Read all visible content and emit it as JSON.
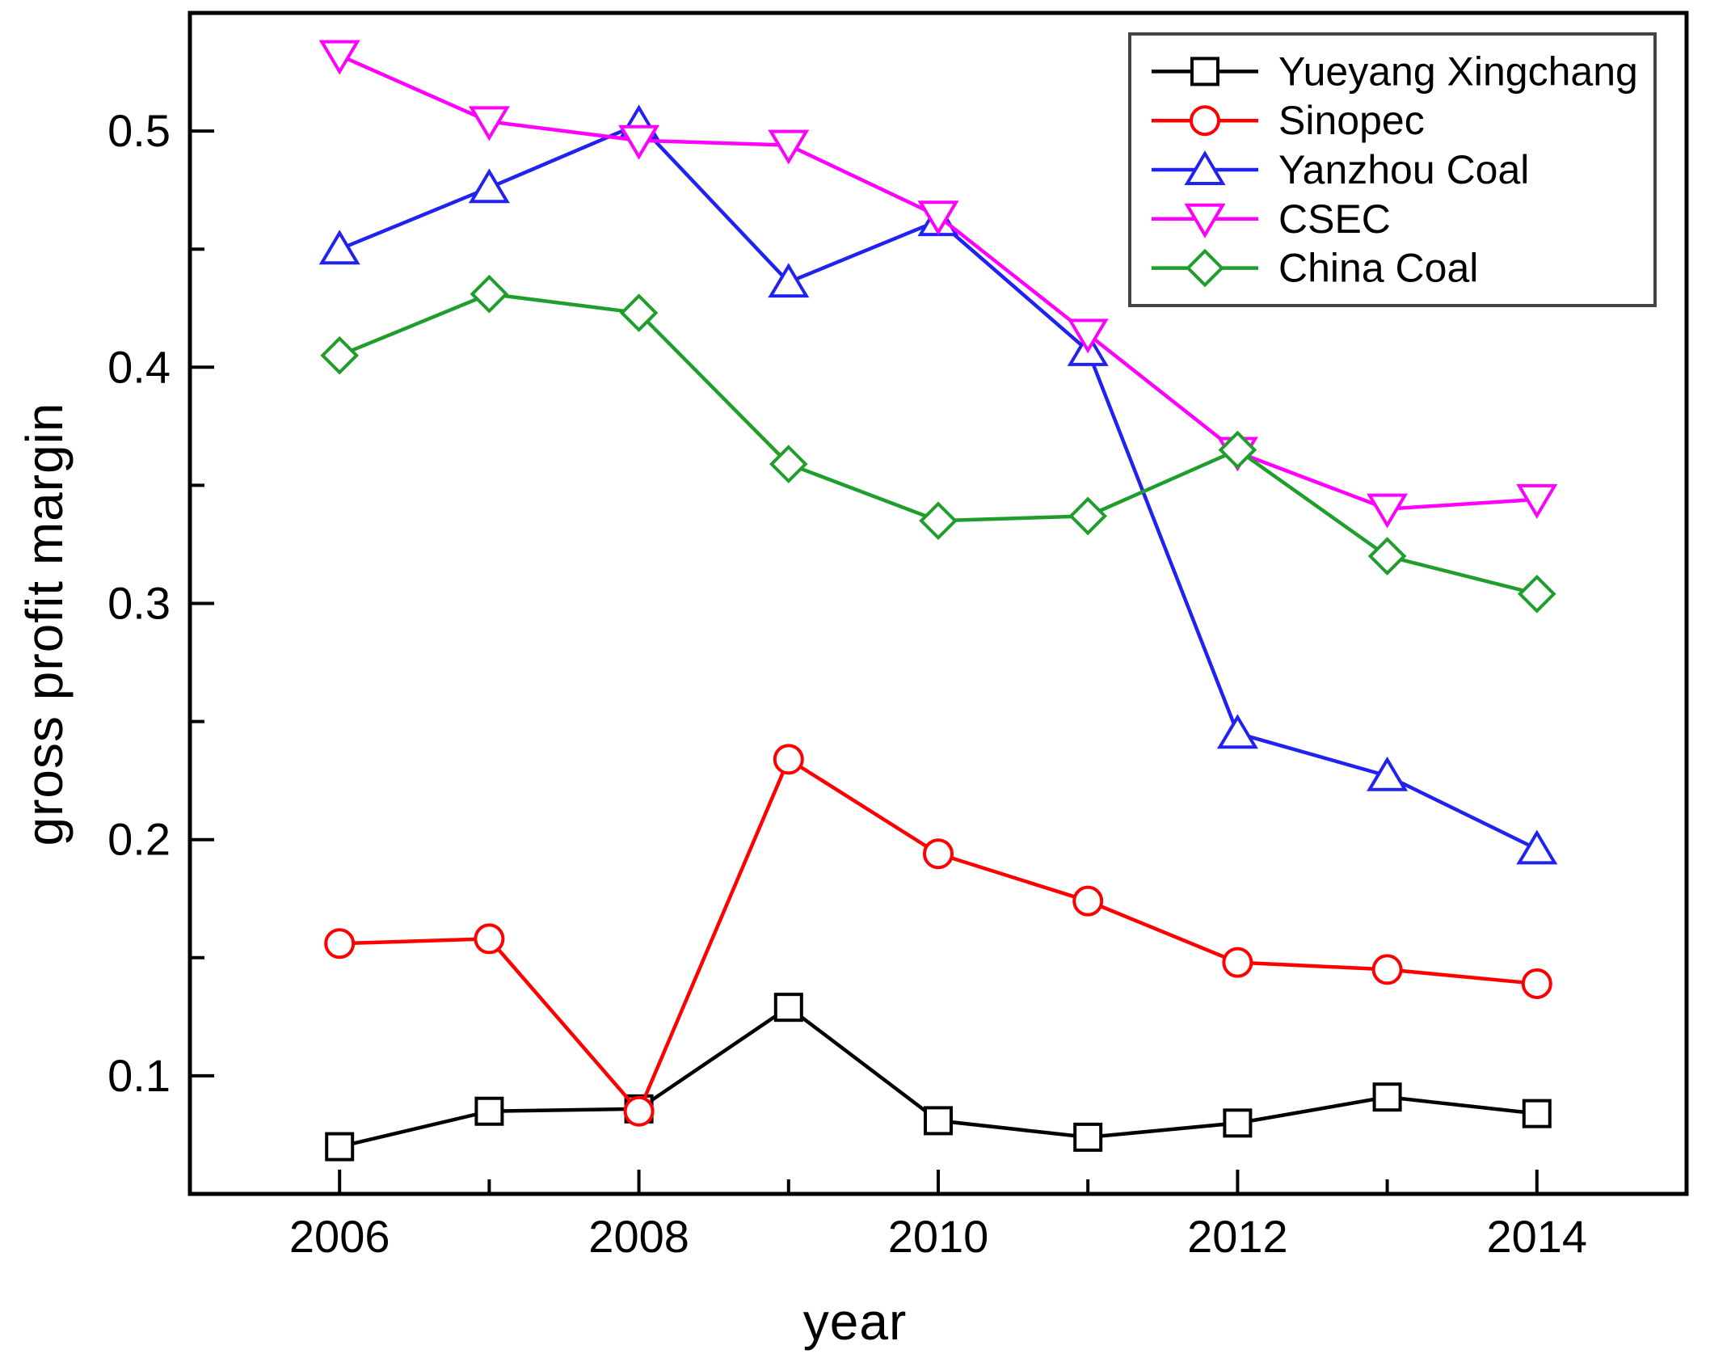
{
  "figure": {
    "background": "#ffffff",
    "text_color": "#000000",
    "frame_color": "#000000",
    "legend_border_color": "#444444"
  },
  "chart_data": {
    "type": "line",
    "title": "",
    "xlabel": "year",
    "ylabel": "gross profit margin",
    "xlim": [
      2005,
      2015
    ],
    "ylim": [
      0.05,
      0.55
    ],
    "x_major_ticks": [
      2006,
      2008,
      2010,
      2012,
      2014
    ],
    "x_major_tick_labels": [
      "2006",
      "2008",
      "2010",
      "2012",
      "2014"
    ],
    "x_minor_ticks": [
      2007,
      2009,
      2011,
      2013
    ],
    "y_major_ticks": [
      0.1,
      0.2,
      0.3,
      0.4,
      0.5
    ],
    "y_major_tick_labels": [
      "0.1",
      "0.2",
      "0.3",
      "0.4",
      "0.5"
    ],
    "y_minor_ticks": [
      0.15,
      0.25,
      0.35,
      0.45
    ],
    "grid": false,
    "legend_position": "top-right-inside",
    "categories": [
      2006,
      2007,
      2008,
      2009,
      2010,
      2011,
      2012,
      2013,
      2014
    ],
    "series": [
      {
        "name": "Yueyang Xingchang",
        "color": "#000000",
        "marker": "square",
        "values": [
          0.07,
          0.085,
          0.086,
          0.129,
          0.081,
          0.074,
          0.08,
          0.091,
          0.084
        ]
      },
      {
        "name": "Sinopec",
        "color": "#ff0000",
        "marker": "circle",
        "values": [
          0.156,
          0.158,
          0.085,
          0.234,
          0.194,
          0.174,
          0.148,
          0.145,
          0.139
        ]
      },
      {
        "name": "Yanzhou Coal",
        "color": "#2222f0",
        "marker": "triangle-up",
        "values": [
          0.45,
          0.476,
          0.503,
          0.436,
          0.462,
          0.407,
          0.245,
          0.227,
          0.196
        ]
      },
      {
        "name": "CSEC",
        "color": "#ff00ff",
        "marker": "triangle-down",
        "values": [
          0.532,
          0.504,
          0.496,
          0.494,
          0.464,
          0.414,
          0.364,
          0.34,
          0.344
        ]
      },
      {
        "name": "China Coal",
        "color": "#1f9e2c",
        "marker": "diamond",
        "values": [
          0.405,
          0.431,
          0.423,
          0.359,
          0.335,
          0.337,
          0.365,
          0.32,
          0.304
        ]
      }
    ]
  }
}
